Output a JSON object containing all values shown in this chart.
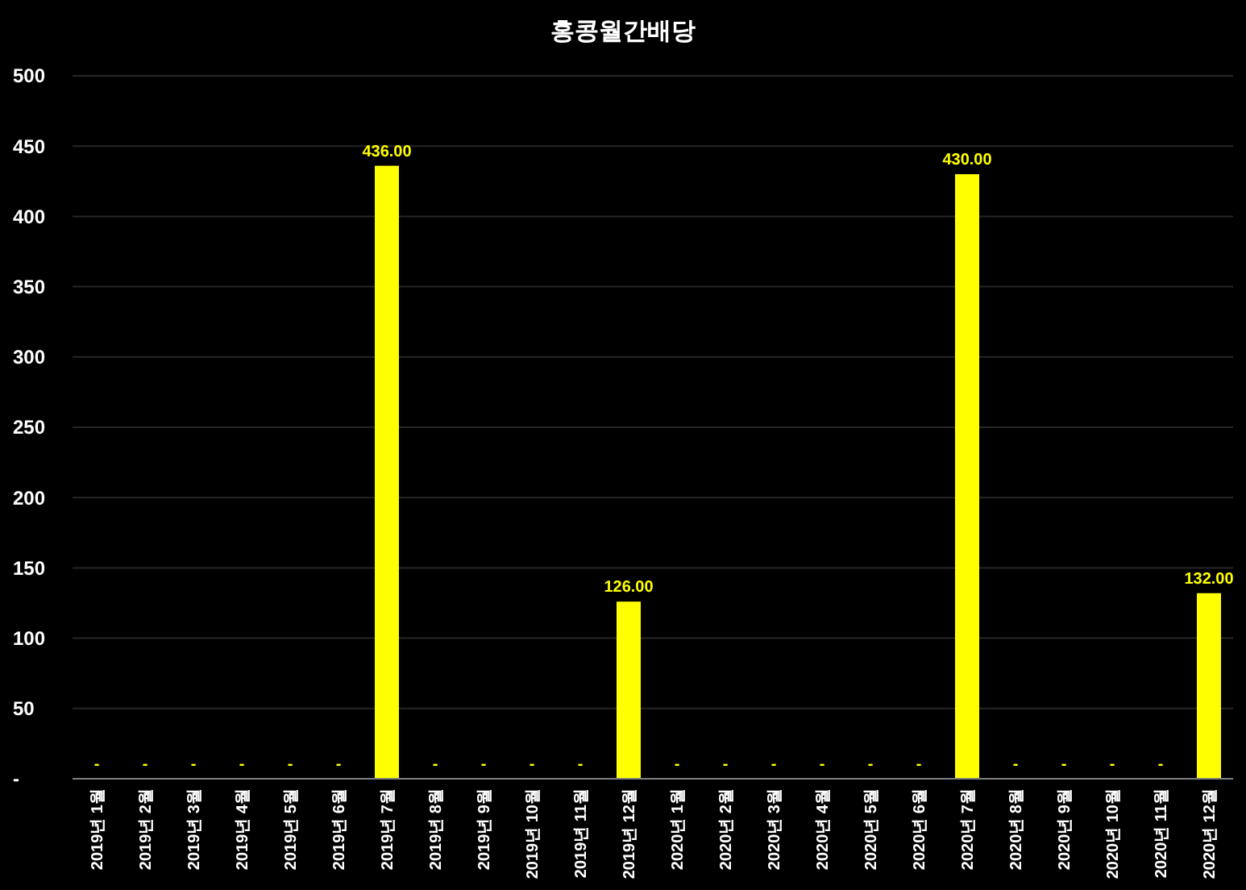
{
  "chart_data": {
    "type": "bar",
    "title": "홍콩월간배당",
    "categories": [
      "2019년 1월",
      "2019년 2월",
      "2019년 3월",
      "2019년 4월",
      "2019년 5월",
      "2019년 6월",
      "2019년 7월",
      "2019년 8월",
      "2019년 9월",
      "2019년 10월",
      "2019년 11월",
      "2019년 12월",
      "2020년 1월",
      "2020년 2월",
      "2020년 3월",
      "2020년 4월",
      "2020년 5월",
      "2020년 6월",
      "2020년 7월",
      "2020년 8월",
      "2020년 9월",
      "2020년 10월",
      "2020년 11월",
      "2020년 12월"
    ],
    "values": [
      0,
      0,
      0,
      0,
      0,
      0,
      436,
      0,
      0,
      0,
      0,
      126,
      0,
      0,
      0,
      0,
      0,
      0,
      430,
      0,
      0,
      0,
      0,
      132
    ],
    "value_labels": [
      "-",
      "-",
      "-",
      "-",
      "-",
      "-",
      "436.00",
      "-",
      "-",
      "-",
      "-",
      "126.00",
      "-",
      "-",
      "-",
      "-",
      "-",
      "-",
      "430.00",
      "-",
      "-",
      "-",
      "-",
      "132.00"
    ],
    "color": "#ffff00",
    "ylim": [
      0,
      500
    ],
    "yticks": [
      {
        "value": 0,
        "label": "-"
      },
      50,
      100,
      150,
      200,
      250,
      300,
      350,
      400,
      450,
      500
    ],
    "grid": "y"
  }
}
